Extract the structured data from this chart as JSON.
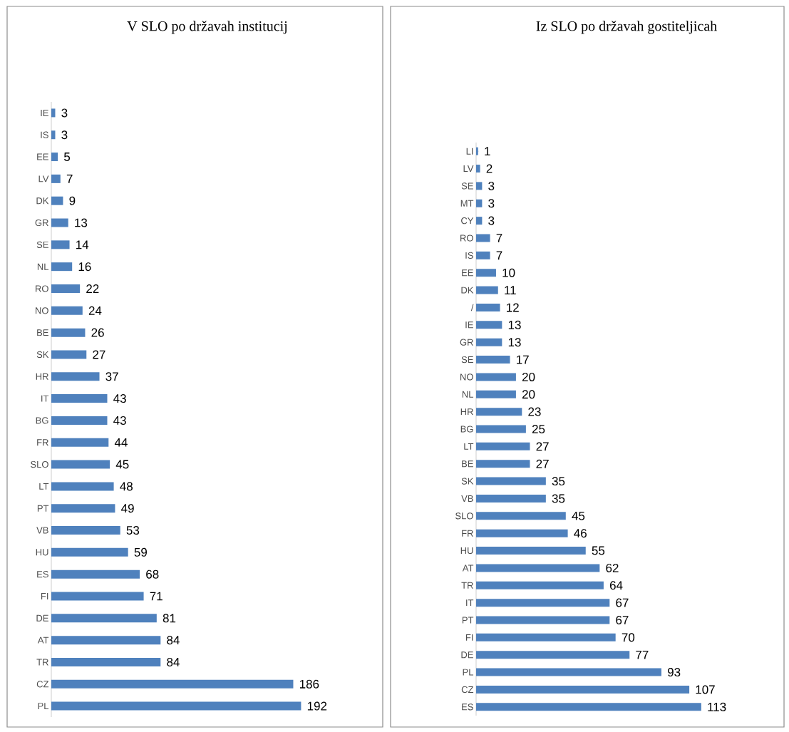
{
  "chart_data": [
    {
      "type": "bar",
      "orientation": "horizontal",
      "title": "V SLO po državah institucij",
      "categories": [
        "IE",
        "IS",
        "EE",
        "LV",
        "DK",
        "GR",
        "SE",
        "NL",
        "RO",
        "NO",
        "BE",
        "SK",
        "HR",
        "IT",
        "BG",
        "FR",
        "SLO",
        "LT",
        "PT",
        "VB",
        "HU",
        "ES",
        "FI",
        "DE",
        "AT",
        "TR",
        "CZ",
        "PL"
      ],
      "values": [
        3,
        3,
        5,
        7,
        9,
        13,
        14,
        16,
        22,
        24,
        26,
        27,
        37,
        43,
        43,
        44,
        45,
        48,
        49,
        53,
        59,
        68,
        71,
        81,
        84,
        84,
        186,
        192
      ],
      "color": "#4f81bd",
      "data_labels": true,
      "tick_labels": "y"
    },
    {
      "type": "bar",
      "orientation": "horizontal",
      "title": "Iz SLO po državah gostiteljicah",
      "categories": [
        "LI",
        "LV",
        "SE",
        "MT",
        "CY",
        "RO",
        "IS",
        "EE",
        "DK",
        "/",
        "IE",
        "GR",
        "SE",
        "NO",
        "NL",
        "HR",
        "BG",
        "LT",
        "BE",
        "SK",
        "VB",
        "SLO",
        "FR",
        "HU",
        "AT",
        "TR",
        "IT",
        "PT",
        "FI",
        "DE",
        "PL",
        "CZ",
        "ES"
      ],
      "values": [
        1,
        2,
        3,
        3,
        3,
        7,
        7,
        10,
        11,
        12,
        13,
        13,
        17,
        20,
        20,
        23,
        25,
        27,
        27,
        35,
        35,
        45,
        46,
        55,
        62,
        64,
        67,
        67,
        70,
        77,
        93,
        107,
        113
      ],
      "color": "#4f81bd",
      "data_labels": true,
      "tick_labels": "y"
    }
  ]
}
